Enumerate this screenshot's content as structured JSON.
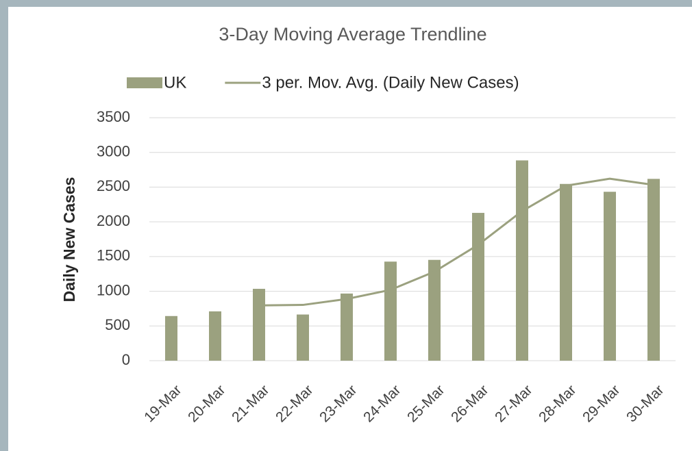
{
  "chart_data": {
    "type": "bar",
    "title": "3-Day Moving Average Trendline",
    "y_label": "Daily New Cases",
    "categories": [
      "19-Mar",
      "20-Mar",
      "21-Mar",
      "22-Mar",
      "23-Mar",
      "24-Mar",
      "25-Mar",
      "26-Mar",
      "27-Mar",
      "28-Mar",
      "29-Mar",
      "30-Mar"
    ],
    "series": [
      {
        "name": "UK",
        "type": "bar",
        "color": "#9ba17f",
        "values": [
          643,
          710,
          1035,
          665,
          967,
          1427,
          1452,
          2129,
          2885,
          2546,
          2433,
          2619
        ]
      },
      {
        "name": "3 per. Mov. Avg. (Daily New Cases)",
        "type": "line",
        "color": "#9ba17f",
        "values": [
          null,
          null,
          796,
          803,
          889,
          1020,
          1282,
          1669,
          2155,
          2520,
          2621,
          2533
        ]
      }
    ],
    "ylim": [
      0,
      3500
    ],
    "yticks": [
      0,
      500,
      1000,
      1500,
      2000,
      2500,
      3000,
      3500
    ],
    "grid": true,
    "legend": "top"
  }
}
